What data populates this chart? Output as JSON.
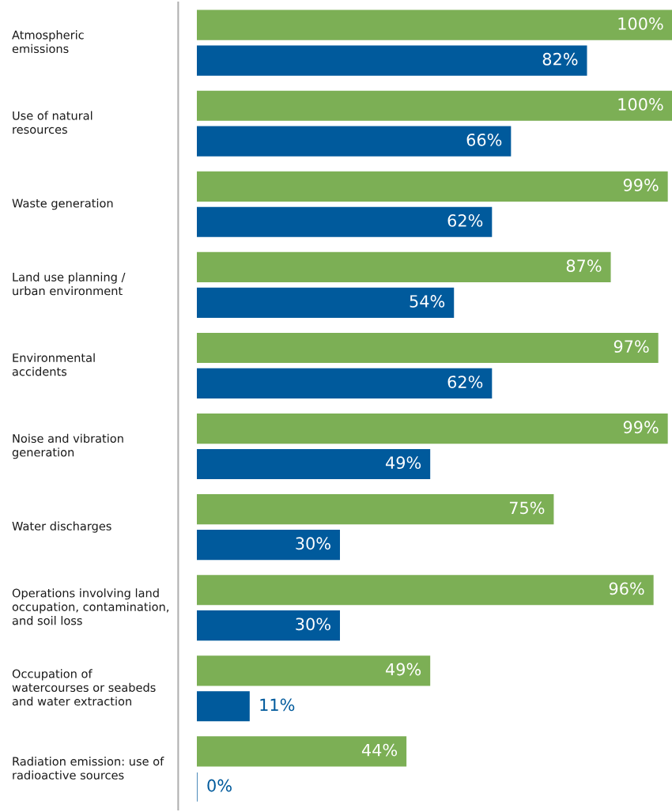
{
  "chart_data": {
    "type": "bar",
    "orientation": "horizontal",
    "categories": [
      "Atmospheric\nemissions",
      "Use of natural\nresources",
      "Waste generation",
      "Land use planning /\nurban environment",
      "Environmental\naccidents",
      "Noise and vibration\ngeneration",
      "Water discharges",
      "Operations involving land\noccupation, contamination,\nand soil loss",
      "Occupation of\nwatercourses or seabeds\nand water extraction",
      "Radiation emission: use of\nradioactive sources"
    ],
    "series": [
      {
        "color": "#7caf55",
        "values": [
          100,
          100,
          99,
          87,
          97,
          99,
          75,
          96,
          49,
          44
        ],
        "value_labels": [
          "100%",
          "100%",
          "99%",
          "87%",
          "97%",
          "99%",
          "75%",
          "96%",
          "49%",
          "44%"
        ]
      },
      {
        "color": "#005a9c",
        "values": [
          82,
          66,
          62,
          54,
          62,
          49,
          30,
          30,
          11,
          0
        ],
        "value_labels": [
          "82%",
          "66%",
          "62%",
          "54%",
          "62%",
          "49%",
          "30%",
          "30%",
          "11%",
          "0%"
        ]
      }
    ],
    "xlim": [
      0,
      100
    ],
    "tick_labels": "y",
    "legend": false
  }
}
